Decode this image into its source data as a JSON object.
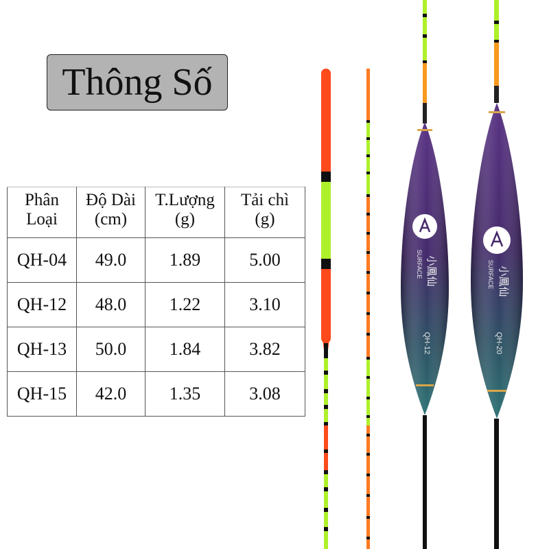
{
  "title": "Thông Số",
  "table": {
    "headers": [
      [
        "Phân",
        "Loại"
      ],
      [
        "Độ Dài",
        "(cm)"
      ],
      [
        "T.Lượng",
        "(g)"
      ],
      [
        "Tải chì",
        "(g)"
      ]
    ],
    "rows": [
      [
        "QH-04",
        "49.0",
        "1.89",
        "5.00"
      ],
      [
        "QH-12",
        "48.0",
        "1.22",
        "3.10"
      ],
      [
        "QH-13",
        "50.0",
        "1.84",
        "3.82"
      ],
      [
        "QH-15",
        "42.0",
        "1.35",
        "3.08"
      ]
    ]
  },
  "float_labels": {
    "left_model": "QH-12",
    "right_model": "QH-20",
    "brand_text": "SURFACE",
    "chinese_text": "小鳳仙"
  },
  "colors": {
    "orange_red": "#ff4a1c",
    "lime": "#aef02a",
    "orange": "#f79a1e",
    "purple": "#4a2c6e",
    "teal": "#2f6f73",
    "title_bg": "#b3b3b3"
  }
}
